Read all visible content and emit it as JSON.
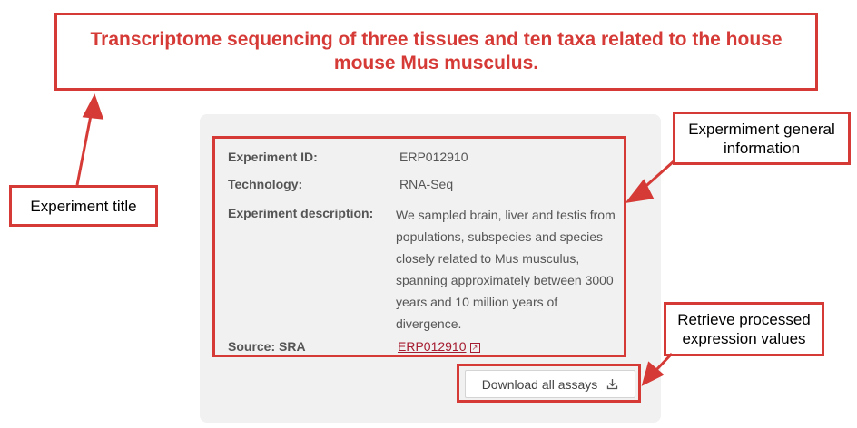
{
  "title": "Transcriptome sequencing of three tissues and ten taxa related to the house mouse Mus musculus.",
  "experiment": {
    "id_label": "Experiment ID:",
    "id_value": "ERP012910",
    "technology_label": "Technology:",
    "technology_value": "RNA-Seq",
    "description_label": "Experiment description:",
    "description_value": "We sampled brain, liver and testis from populations, subspecies and species closely related to Mus musculus, spanning approximately between 3000 years and 10 million years of divergence.",
    "source_label": "Source: SRA",
    "source_link": "ERP012910"
  },
  "download_button": "Download all assays",
  "annotations": {
    "experiment_title": "Experiment title",
    "general_info": "Expermiment general information",
    "retrieve_values": "Retrieve processed expression values"
  },
  "colors": {
    "annotation_red": "#d53a36",
    "panel_bg": "#f1f1f1",
    "link": "#a51c30"
  }
}
